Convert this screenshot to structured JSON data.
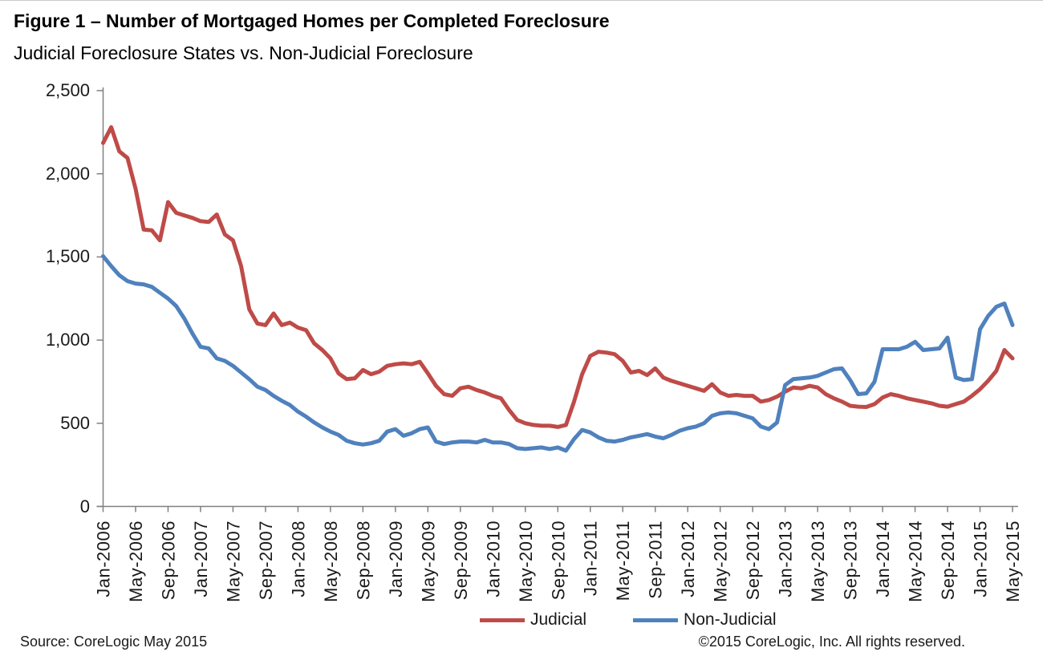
{
  "figure": {
    "title": "Figure 1 – Number of Mortgaged Homes per Completed Foreclosure",
    "subtitle": "Judicial Foreclosure States vs. Non-Judicial Foreclosure"
  },
  "footer": {
    "source": "Source: CoreLogic May 2015",
    "copyright": "©2015 CoreLogic, Inc. All rights reserved."
  },
  "chart_data": {
    "type": "line",
    "title": "Figure 1 – Number of Mortgaged Homes per Completed Foreclosure",
    "subtitle": "Judicial Foreclosure States vs. Non-Judicial Foreclosure",
    "xlabel": "",
    "ylabel": "",
    "ylim": [
      0,
      2500
    ],
    "grid": false,
    "legend_position": "bottom-center",
    "ytick_values": [
      2500,
      2000,
      1500,
      1000,
      500,
      0
    ],
    "ytick_labels": [
      "2,500",
      "2,000",
      "1,500",
      "1,000",
      "500",
      "0"
    ],
    "x_tick_every": 4,
    "x_tick_labels": [
      "Jan-2006",
      "May-2006",
      "Sep-2006",
      "Jan-2007",
      "May-2007",
      "Sep-2007",
      "Jan-2008",
      "May-2008",
      "Sep-2008",
      "Jan-2009",
      "May-2009",
      "Sep-2009",
      "Jan-2010",
      "May-2010",
      "Sep-2010",
      "Jan-2011",
      "May-2011",
      "Sep-2011",
      "Jan-2012",
      "May-2012",
      "Sep-2012",
      "Jan-2013",
      "May-2013",
      "Sep-2013",
      "Jan-2014",
      "May-2014",
      "Sep-2014",
      "Jan-2015",
      "May-2015"
    ],
    "x": [
      "Jan-2006",
      "Feb-2006",
      "Mar-2006",
      "Apr-2006",
      "May-2006",
      "Jun-2006",
      "Jul-2006",
      "Aug-2006",
      "Sep-2006",
      "Oct-2006",
      "Nov-2006",
      "Dec-2006",
      "Jan-2007",
      "Feb-2007",
      "Mar-2007",
      "Apr-2007",
      "May-2007",
      "Jun-2007",
      "Jul-2007",
      "Aug-2007",
      "Sep-2007",
      "Oct-2007",
      "Nov-2007",
      "Dec-2007",
      "Jan-2008",
      "Feb-2008",
      "Mar-2008",
      "Apr-2008",
      "May-2008",
      "Jun-2008",
      "Jul-2008",
      "Aug-2008",
      "Sep-2008",
      "Oct-2008",
      "Nov-2008",
      "Dec-2008",
      "Jan-2009",
      "Feb-2009",
      "Mar-2009",
      "Apr-2009",
      "May-2009",
      "Jun-2009",
      "Jul-2009",
      "Aug-2009",
      "Sep-2009",
      "Oct-2009",
      "Nov-2009",
      "Dec-2009",
      "Jan-2010",
      "Feb-2010",
      "Mar-2010",
      "Apr-2010",
      "May-2010",
      "Jun-2010",
      "Jul-2010",
      "Aug-2010",
      "Sep-2010",
      "Oct-2010",
      "Nov-2010",
      "Dec-2010",
      "Jan-2011",
      "Feb-2011",
      "Mar-2011",
      "Apr-2011",
      "May-2011",
      "Jun-2011",
      "Jul-2011",
      "Aug-2011",
      "Sep-2011",
      "Oct-2011",
      "Nov-2011",
      "Dec-2011",
      "Jan-2012",
      "Feb-2012",
      "Mar-2012",
      "Apr-2012",
      "May-2012",
      "Jun-2012",
      "Jul-2012",
      "Aug-2012",
      "Sep-2012",
      "Oct-2012",
      "Nov-2012",
      "Dec-2012",
      "Jan-2013",
      "Feb-2013",
      "Mar-2013",
      "Apr-2013",
      "May-2013",
      "Jun-2013",
      "Jul-2013",
      "Aug-2013",
      "Sep-2013",
      "Oct-2013",
      "Nov-2013",
      "Dec-2013",
      "Jan-2014",
      "Feb-2014",
      "Mar-2014",
      "Apr-2014",
      "May-2014",
      "Jun-2014",
      "Jul-2014",
      "Aug-2014",
      "Sep-2014",
      "Oct-2014",
      "Nov-2014",
      "Dec-2014",
      "Jan-2015",
      "Feb-2015",
      "Mar-2015",
      "Apr-2015",
      "May-2015"
    ],
    "series": [
      {
        "name": "Judicial",
        "color": "#BE4B48",
        "values": [
          2185,
          2280,
          2135,
          2095,
          1910,
          1665,
          1660,
          1600,
          1830,
          1765,
          1750,
          1735,
          1715,
          1710,
          1755,
          1635,
          1600,
          1445,
          1185,
          1100,
          1090,
          1160,
          1090,
          1105,
          1075,
          1060,
          980,
          940,
          890,
          800,
          765,
          770,
          820,
          795,
          810,
          845,
          855,
          860,
          855,
          870,
          800,
          725,
          675,
          665,
          710,
          720,
          700,
          685,
          665,
          650,
          580,
          520,
          500,
          490,
          485,
          485,
          478,
          490,
          630,
          795,
          905,
          930,
          925,
          915,
          875,
          805,
          815,
          790,
          830,
          775,
          755,
          740,
          725,
          710,
          695,
          735,
          685,
          665,
          670,
          665,
          665,
          630,
          640,
          660,
          690,
          715,
          710,
          725,
          715,
          675,
          650,
          630,
          605,
          600,
          598,
          615,
          655,
          675,
          665,
          650,
          640,
          630,
          620,
          605,
          600,
          615,
          630,
          665,
          705,
          755,
          815,
          940,
          890
        ]
      },
      {
        "name": "Non-Judicial",
        "color": "#4F81BD",
        "values": [
          1505,
          1445,
          1390,
          1355,
          1340,
          1335,
          1320,
          1285,
          1250,
          1205,
          1130,
          1040,
          960,
          950,
          890,
          875,
          845,
          805,
          765,
          720,
          700,
          665,
          635,
          610,
          570,
          540,
          505,
          475,
          450,
          430,
          395,
          380,
          372,
          380,
          395,
          450,
          465,
          425,
          440,
          465,
          475,
          390,
          375,
          385,
          390,
          390,
          385,
          400,
          385,
          385,
          375,
          350,
          345,
          350,
          355,
          345,
          355,
          335,
          405,
          460,
          445,
          415,
          395,
          390,
          400,
          415,
          425,
          435,
          420,
          410,
          430,
          455,
          470,
          480,
          500,
          545,
          560,
          565,
          560,
          545,
          530,
          480,
          465,
          505,
          730,
          765,
          770,
          775,
          785,
          805,
          825,
          830,
          760,
          675,
          680,
          750,
          945,
          945,
          945,
          960,
          990,
          940,
          945,
          950,
          1015,
          775,
          760,
          765,
          1065,
          1145,
          1200,
          1220,
          1090
        ]
      }
    ]
  }
}
